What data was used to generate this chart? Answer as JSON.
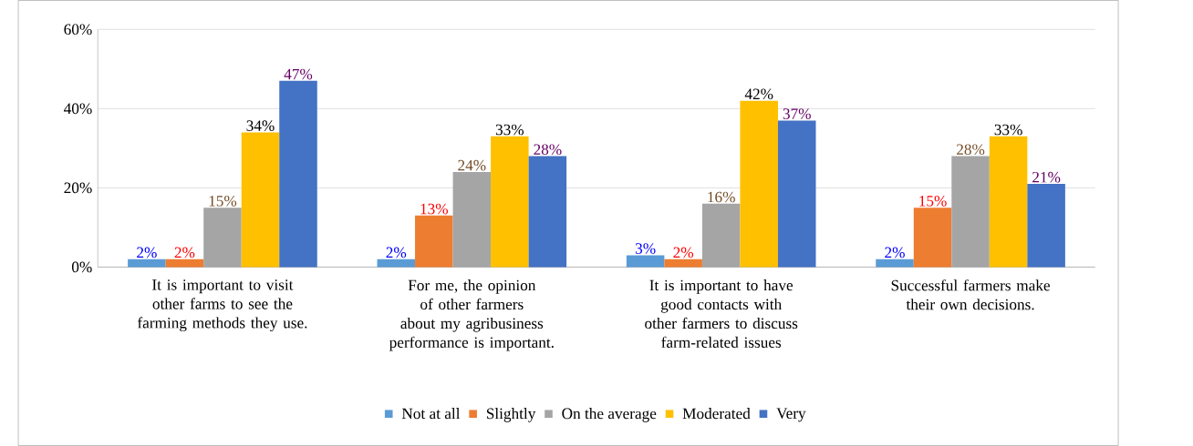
{
  "chart_data": {
    "type": "bar",
    "categories": [
      "It is important to visit other farms to see the farming methods they use.",
      "For me, the opinion of other farmers about my agribusiness performance is important.",
      "It is important to have good contacts with other farmers to discuss farm-related issues",
      "Successful farmers make their own decisions."
    ],
    "series": [
      {
        "name": "Not at all",
        "color": "#5b9bd5",
        "values": [
          2,
          2,
          3,
          2
        ],
        "value_labels": [
          "2%",
          "2%",
          "3%",
          "2%"
        ]
      },
      {
        "name": "Slightly",
        "color": "#ed7d31",
        "values": [
          2,
          13,
          2,
          15
        ],
        "value_labels": [
          "2%",
          "13%",
          "2%",
          "15%"
        ]
      },
      {
        "name": "On the average",
        "color": "#a5a5a5",
        "values": [
          15,
          24,
          16,
          28
        ],
        "value_labels": [
          "15%",
          "24%",
          "16%",
          "28%"
        ]
      },
      {
        "name": "Moderated",
        "color": "#ffc000",
        "values": [
          34,
          33,
          42,
          33
        ],
        "value_labels": [
          "34%",
          "33%",
          "42%",
          "33%"
        ]
      },
      {
        "name": "Very",
        "color": "#4472c4",
        "values": [
          47,
          28,
          37,
          21
        ],
        "value_labels": [
          "47%",
          "28%",
          "37%",
          "21%"
        ]
      }
    ],
    "ylim": [
      0,
      60
    ],
    "yticks": [
      {
        "value": 0,
        "label": "0%"
      },
      {
        "value": 20,
        "label": "20%"
      },
      {
        "value": 40,
        "label": "40%"
      },
      {
        "value": 60,
        "label": "60%"
      }
    ],
    "grid": "y",
    "legend": "bottom"
  }
}
